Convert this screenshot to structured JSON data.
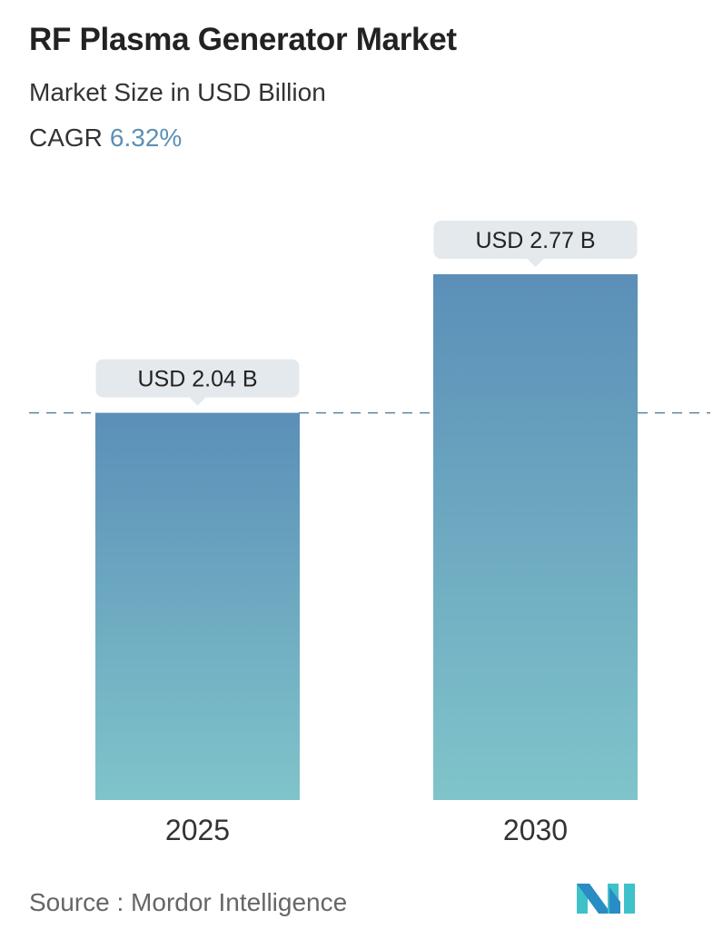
{
  "header": {
    "title": "RF Plasma Generator Market",
    "subtitle": "Market Size in USD Billion",
    "cagr_label": "CAGR",
    "cagr_value": "6.32%"
  },
  "chart_data": {
    "type": "bar",
    "categories": [
      "2025",
      "2030"
    ],
    "values": [
      2.04,
      2.77
    ],
    "data_labels": [
      "USD 2.04 B",
      "USD 2.77 B"
    ],
    "reference_line": "dashed at 2025 value",
    "ylim": [
      0,
      2.77
    ],
    "grid": false,
    "colors": {
      "bar_top": "#5b8fb8",
      "bar_bottom": "#80c4ca",
      "label_bg": "#e3e9ec",
      "dash": "#5d83a3"
    }
  },
  "footer": {
    "source": "Source :  Mordor Intelligence"
  },
  "logo": {
    "alt": "Mordor Intelligence logo"
  }
}
